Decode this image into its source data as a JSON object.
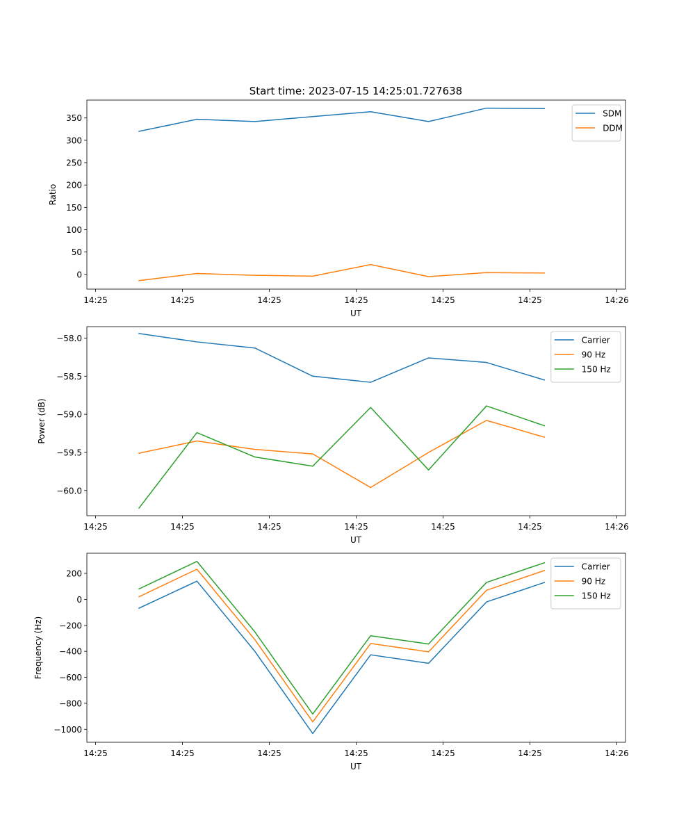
{
  "figure_title": "Start time: 2023-07-15 14:25:01.727638",
  "colors": {
    "c0": "#1f77b4",
    "c1": "#ff7f0e",
    "c2": "#2ca02c"
  },
  "chart_data": [
    {
      "type": "line",
      "title": "Start time: 2023-07-15 14:25:01.727638",
      "xlabel": "UT",
      "ylabel": "Ratio",
      "xlim": [
        0,
        9.3
      ],
      "ylim": [
        -33,
        390
      ],
      "xticks": [
        0.15,
        1.65,
        3.15,
        4.65,
        6.15,
        7.65,
        9.15
      ],
      "xtick_labels": [
        "14:25",
        "14:25",
        "14:25",
        "14:25",
        "14:25",
        "14:25",
        "14:26"
      ],
      "yticks": [
        0,
        50,
        100,
        150,
        200,
        250,
        300,
        350
      ],
      "ytick_labels": [
        "0",
        "50",
        "100",
        "150",
        "200",
        "250",
        "300",
        "350"
      ],
      "legend_position": "upper right",
      "x": [
        0.9,
        1.9,
        2.9,
        3.9,
        4.9,
        5.9,
        6.9,
        7.9
      ],
      "series": [
        {
          "name": "SDM",
          "color": "#1f77b4",
          "values": [
            320,
            347,
            342,
            353,
            364,
            342,
            372,
            371
          ]
        },
        {
          "name": "DDM",
          "color": "#ff7f0e",
          "values": [
            -14,
            2,
            -2,
            -4,
            22,
            -5,
            4,
            3
          ]
        }
      ]
    },
    {
      "type": "line",
      "xlabel": "UT",
      "ylabel": "Power (dB)",
      "xlim": [
        0,
        9.3
      ],
      "ylim": [
        -60.33,
        -57.85
      ],
      "xticks": [
        0.15,
        1.65,
        3.15,
        4.65,
        6.15,
        7.65,
        9.15
      ],
      "xtick_labels": [
        "14:25",
        "14:25",
        "14:25",
        "14:25",
        "14:25",
        "14:25",
        "14:26"
      ],
      "yticks": [
        -60.0,
        -59.5,
        -59.0,
        -58.5,
        -58.0
      ],
      "ytick_labels": [
        "−60.0",
        "−59.5",
        "−59.0",
        "−58.5",
        "−58.0"
      ],
      "legend_position": "upper right",
      "x": [
        0.9,
        1.9,
        2.9,
        3.9,
        4.9,
        5.9,
        6.9,
        7.9
      ],
      "series": [
        {
          "name": "Carrier",
          "color": "#1f77b4",
          "values": [
            -57.94,
            -58.05,
            -58.13,
            -58.5,
            -58.58,
            -58.26,
            -58.32,
            -58.55
          ]
        },
        {
          "name": "90 Hz",
          "color": "#ff7f0e",
          "values": [
            -59.51,
            -59.35,
            -59.46,
            -59.52,
            -59.96,
            -59.5,
            -59.08,
            -59.3
          ]
        },
        {
          "name": "150 Hz",
          "color": "#2ca02c",
          "values": [
            -60.23,
            -59.24,
            -59.56,
            -59.68,
            -58.91,
            -59.73,
            -58.89,
            -59.15
          ]
        }
      ]
    },
    {
      "type": "line",
      "xlabel": "UT",
      "ylabel": "Frequency (Hz)",
      "xlim": [
        0,
        9.3
      ],
      "ylim": [
        -1100,
        355
      ],
      "xticks": [
        0.15,
        1.65,
        3.15,
        4.65,
        6.15,
        7.65,
        9.15
      ],
      "xtick_labels": [
        "14:25",
        "14:25",
        "14:25",
        "14:25",
        "14:25",
        "14:25",
        "14:26"
      ],
      "yticks": [
        -1000,
        -800,
        -600,
        -400,
        -200,
        0,
        200
      ],
      "ytick_labels": [
        "−1000",
        "−800",
        "−600",
        "−400",
        "−200",
        "0",
        "200"
      ],
      "legend_position": "upper right",
      "x": [
        0.9,
        1.9,
        2.9,
        3.9,
        4.9,
        5.9,
        6.9,
        7.9
      ],
      "series": [
        {
          "name": "Carrier",
          "color": "#1f77b4",
          "values": [
            -68,
            140,
            -400,
            -1033,
            -427,
            -492,
            -20,
            130
          ]
        },
        {
          "name": "90 Hz",
          "color": "#ff7f0e",
          "values": [
            20,
            232,
            -310,
            -943,
            -340,
            -404,
            70,
            222
          ]
        },
        {
          "name": "150 Hz",
          "color": "#2ca02c",
          "values": [
            80,
            292,
            -250,
            -883,
            -280,
            -344,
            130,
            282
          ]
        }
      ]
    }
  ]
}
